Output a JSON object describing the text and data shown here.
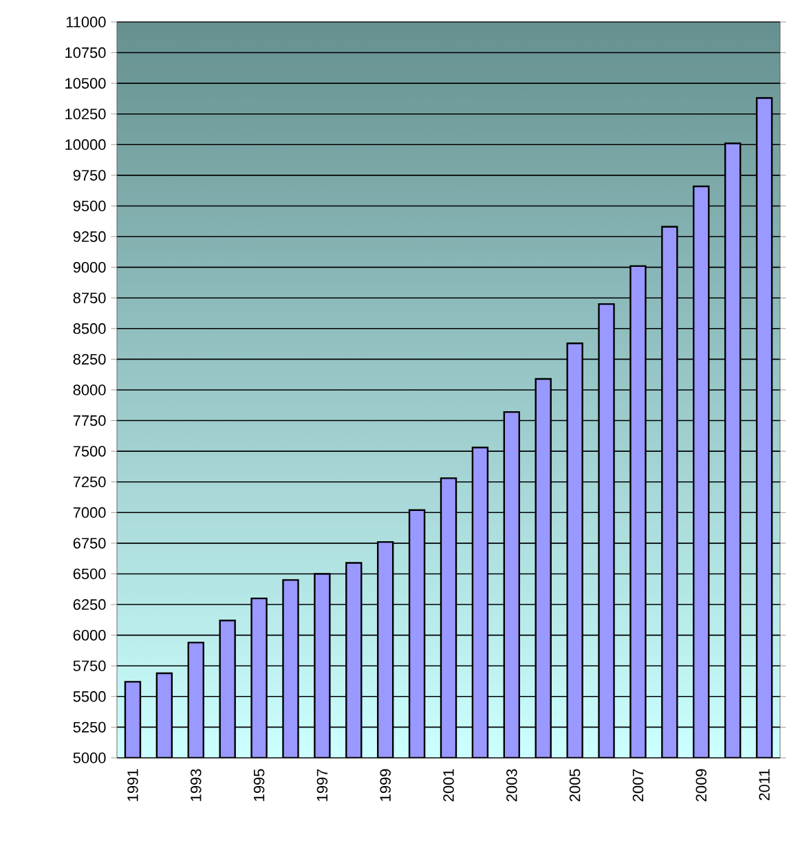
{
  "chart_data": {
    "type": "bar",
    "categories": [
      "1991",
      null,
      "1993",
      null,
      "1995",
      null,
      "1997",
      null,
      "1999",
      null,
      "2001",
      null,
      "2003",
      null,
      "2005",
      null,
      "2007",
      null,
      "2009",
      null,
      "2011"
    ],
    "values": [
      5620,
      5690,
      5940,
      6120,
      6300,
      6450,
      6500,
      6590,
      6760,
      7020,
      7280,
      7530,
      7820,
      8090,
      8380,
      8700,
      9010,
      9330,
      9660,
      10010,
      10380
    ],
    "color": "#9999ff",
    "ylim": [
      5000,
      11000
    ],
    "yticks": [
      5000,
      5250,
      5500,
      5750,
      6000,
      6250,
      6500,
      6750,
      7000,
      7250,
      7500,
      7750,
      8000,
      8250,
      8500,
      8750,
      9000,
      9250,
      9500,
      9750,
      10000,
      10250,
      10500,
      10750,
      11000
    ],
    "grid": "y"
  }
}
